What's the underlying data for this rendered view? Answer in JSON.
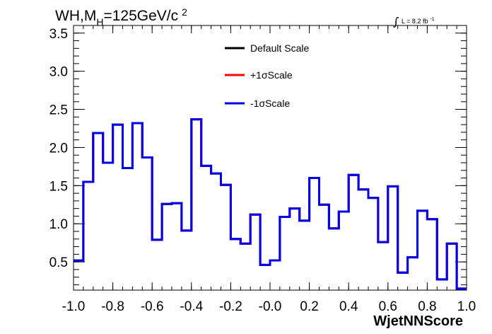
{
  "chart_data": {
    "type": "line",
    "title_main": "WH,M",
    "title_sub": "H",
    "title_rest": "=125GeV/c",
    "title_sup": "2",
    "lumi_label": "L = 8.2 fb",
    "lumi_sup": "-1",
    "xlabel": "WjetNNScore",
    "ylabel": "",
    "xlim": [
      -1.0,
      1.0
    ],
    "ylim": [
      0.13,
      3.6
    ],
    "x_ticks": [
      -1.0,
      -0.8,
      -0.6,
      -0.4,
      -0.2,
      0.0,
      0.2,
      0.4,
      0.6,
      0.8,
      1.0
    ],
    "x_tick_labels": [
      "-1.0",
      "-0.8",
      "-0.6",
      "-0.4",
      "-0.2",
      "-0.0",
      "0.2",
      "0.4",
      "0.6",
      "0.8",
      "1.0"
    ],
    "y_ticks": [
      0.5,
      1.0,
      1.5,
      2.0,
      2.5,
      3.0,
      3.5
    ],
    "y_tick_labels": [
      "0.5",
      "1.0",
      "1.5",
      "2.0",
      "2.5",
      "3.0",
      "3.5"
    ],
    "bin_edges": [
      -1.0,
      -0.95,
      -0.9,
      -0.85,
      -0.8,
      -0.75,
      -0.7,
      -0.65,
      -0.6,
      -0.55,
      -0.5,
      -0.45,
      -0.4,
      -0.35,
      -0.3,
      -0.25,
      -0.2,
      -0.15,
      -0.1,
      -0.05,
      0.0,
      0.05,
      0.1,
      0.15,
      0.2,
      0.25,
      0.3,
      0.35,
      0.4,
      0.45,
      0.5,
      0.55,
      0.6,
      0.65,
      0.7,
      0.75,
      0.8,
      0.85,
      0.9,
      0.95,
      1.0
    ],
    "series": [
      {
        "name": "Default Scale",
        "color": "#000000",
        "values": [
          0.52,
          1.55,
          2.19,
          1.8,
          2.3,
          1.73,
          2.32,
          1.87,
          0.79,
          1.26,
          1.27,
          0.91,
          2.37,
          1.76,
          1.66,
          1.51,
          0.8,
          0.74,
          1.12,
          0.46,
          0.52,
          1.09,
          1.2,
          1.04,
          1.6,
          1.25,
          0.94,
          1.16,
          1.64,
          1.45,
          1.34,
          0.76,
          1.49,
          0.36,
          0.56,
          1.17,
          1.06,
          0.27,
          0.74,
          0.15
        ]
      },
      {
        "name": "+1σScale",
        "color": "#ff0000",
        "values": [
          0.52,
          1.55,
          2.19,
          1.8,
          2.3,
          1.73,
          2.32,
          1.87,
          0.79,
          1.26,
          1.27,
          0.91,
          2.37,
          1.76,
          1.66,
          1.51,
          0.8,
          0.74,
          1.12,
          0.46,
          0.52,
          1.09,
          1.2,
          1.04,
          1.6,
          1.25,
          0.94,
          1.16,
          1.64,
          1.45,
          1.34,
          0.76,
          1.49,
          0.36,
          0.56,
          1.17,
          1.06,
          0.27,
          0.74,
          0.15
        ]
      },
      {
        "name": "-1σScale",
        "color": "#0000ee",
        "values": [
          0.52,
          1.55,
          2.19,
          1.8,
          2.3,
          1.73,
          2.32,
          1.87,
          0.79,
          1.26,
          1.27,
          0.91,
          2.37,
          1.76,
          1.66,
          1.51,
          0.8,
          0.74,
          1.12,
          0.46,
          0.52,
          1.09,
          1.2,
          1.04,
          1.6,
          1.25,
          0.94,
          1.16,
          1.64,
          1.45,
          1.34,
          0.76,
          1.49,
          0.36,
          0.56,
          1.17,
          1.06,
          0.27,
          0.74,
          0.15
        ]
      }
    ],
    "legend_position": "top-right",
    "grid": false
  }
}
